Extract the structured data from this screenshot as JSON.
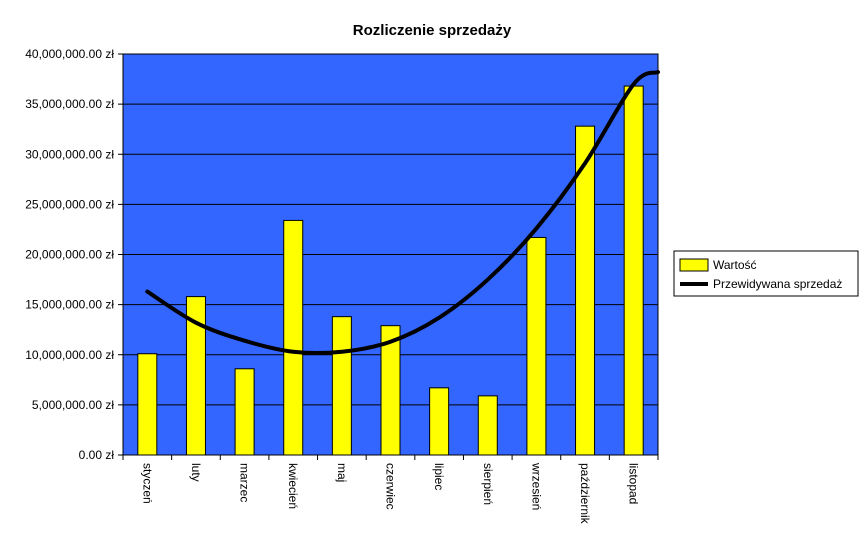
{
  "chart_data": {
    "type": "bar",
    "title": "Rozliczenie sprzedaży",
    "categories": [
      "styczeń",
      "luty",
      "marzec",
      "kwiecień",
      "maj",
      "czerwiec",
      "lipiec",
      "sierpień",
      "wrzesień",
      "październik",
      "listopad"
    ],
    "series": [
      {
        "name": "Wartość",
        "type": "bar",
        "color": "#ffff00",
        "values": [
          10100000,
          15800000,
          8600000,
          23400000,
          13800000,
          12900000,
          6700000,
          5900000,
          21700000,
          32800000,
          36800000
        ]
      },
      {
        "name": "Przewidywana sprzedaż",
        "type": "line",
        "color": "#000000",
        "values": [
          16300000,
          13200000,
          11400000,
          10300000,
          10300000,
          11300000,
          13700000,
          17500000,
          22600000,
          29100000,
          37000000
        ],
        "end_value": 38200000
      }
    ],
    "ylim": [
      0,
      40000000
    ],
    "yticks": [
      0,
      5000000,
      10000000,
      15000000,
      20000000,
      25000000,
      30000000,
      35000000,
      40000000
    ],
    "ytick_labels": [
      "0.00 zł",
      "5,000,000.00 zł",
      "10,000,000.00 zł",
      "15,000,000.00 zł",
      "20,000,000.00 zł",
      "25,000,000.00 zł",
      "30,000,000.00 zł",
      "35,000,000.00 zł",
      "40,000,000.00 zł"
    ],
    "grid": true,
    "plot_background": "#3366ff",
    "legend_position": "right"
  }
}
